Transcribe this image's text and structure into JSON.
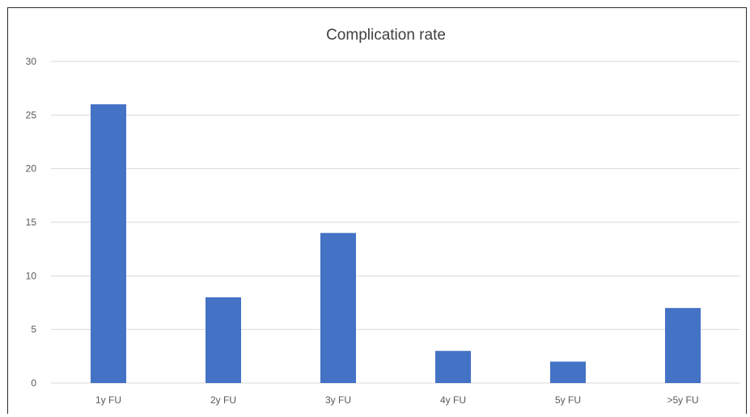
{
  "chart_data": {
    "type": "bar",
    "title": "Complication rate",
    "xlabel": "",
    "ylabel": "",
    "categories": [
      "1y FU",
      "2y FU",
      "3y FU",
      "4y FU",
      "5y FU",
      ">5y FU"
    ],
    "values": [
      26,
      8,
      14,
      3,
      2,
      7
    ],
    "ylim": [
      0,
      30
    ],
    "yticks": [
      0,
      5,
      10,
      15,
      20,
      25,
      30
    ],
    "grid": true,
    "legend": "none",
    "bar_color": "#4472c4",
    "grid_color": "#d9d9d9"
  }
}
